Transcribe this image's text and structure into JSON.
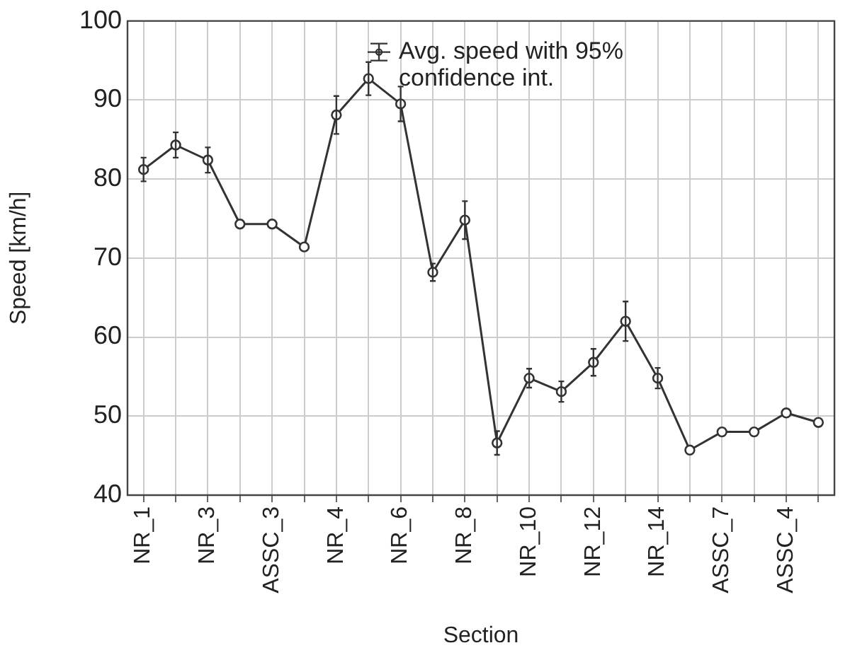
{
  "chart_data": {
    "type": "line",
    "xlabel": "Section",
    "ylabel": "Speed [km/h]",
    "categories": [
      "NR_1",
      null,
      "NR_3",
      null,
      "ASSC_3",
      null,
      "NR_4",
      null,
      "NR_6",
      null,
      "NR_8",
      null,
      "NR_10",
      null,
      "NR_12",
      null,
      "NR_14",
      null,
      "ASSC_7",
      null,
      "ASSC_4",
      null
    ],
    "series": [
      {
        "name": "Avg. speed with 95% confidence int.",
        "color": "#333333",
        "values": [
          81.2,
          84.3,
          82.4,
          74.3,
          74.3,
          71.4,
          88.1,
          92.7,
          89.5,
          68.2,
          74.8,
          46.6,
          54.8,
          53.1,
          56.8,
          62.0,
          54.8,
          45.7,
          48.0,
          48.0,
          50.4,
          49.2
        ],
        "errors": [
          1.5,
          1.6,
          1.6,
          null,
          null,
          null,
          2.4,
          2.1,
          2.2,
          1.1,
          2.4,
          1.5,
          1.2,
          1.3,
          1.7,
          2.5,
          1.3,
          null,
          null,
          null,
          null,
          null
        ]
      }
    ],
    "ylim": [
      40,
      100
    ],
    "yticks": [
      40,
      50,
      60,
      70,
      80,
      90,
      100
    ],
    "grid": true,
    "legend": "top",
    "marker": "circle",
    "line_style": "solid"
  }
}
